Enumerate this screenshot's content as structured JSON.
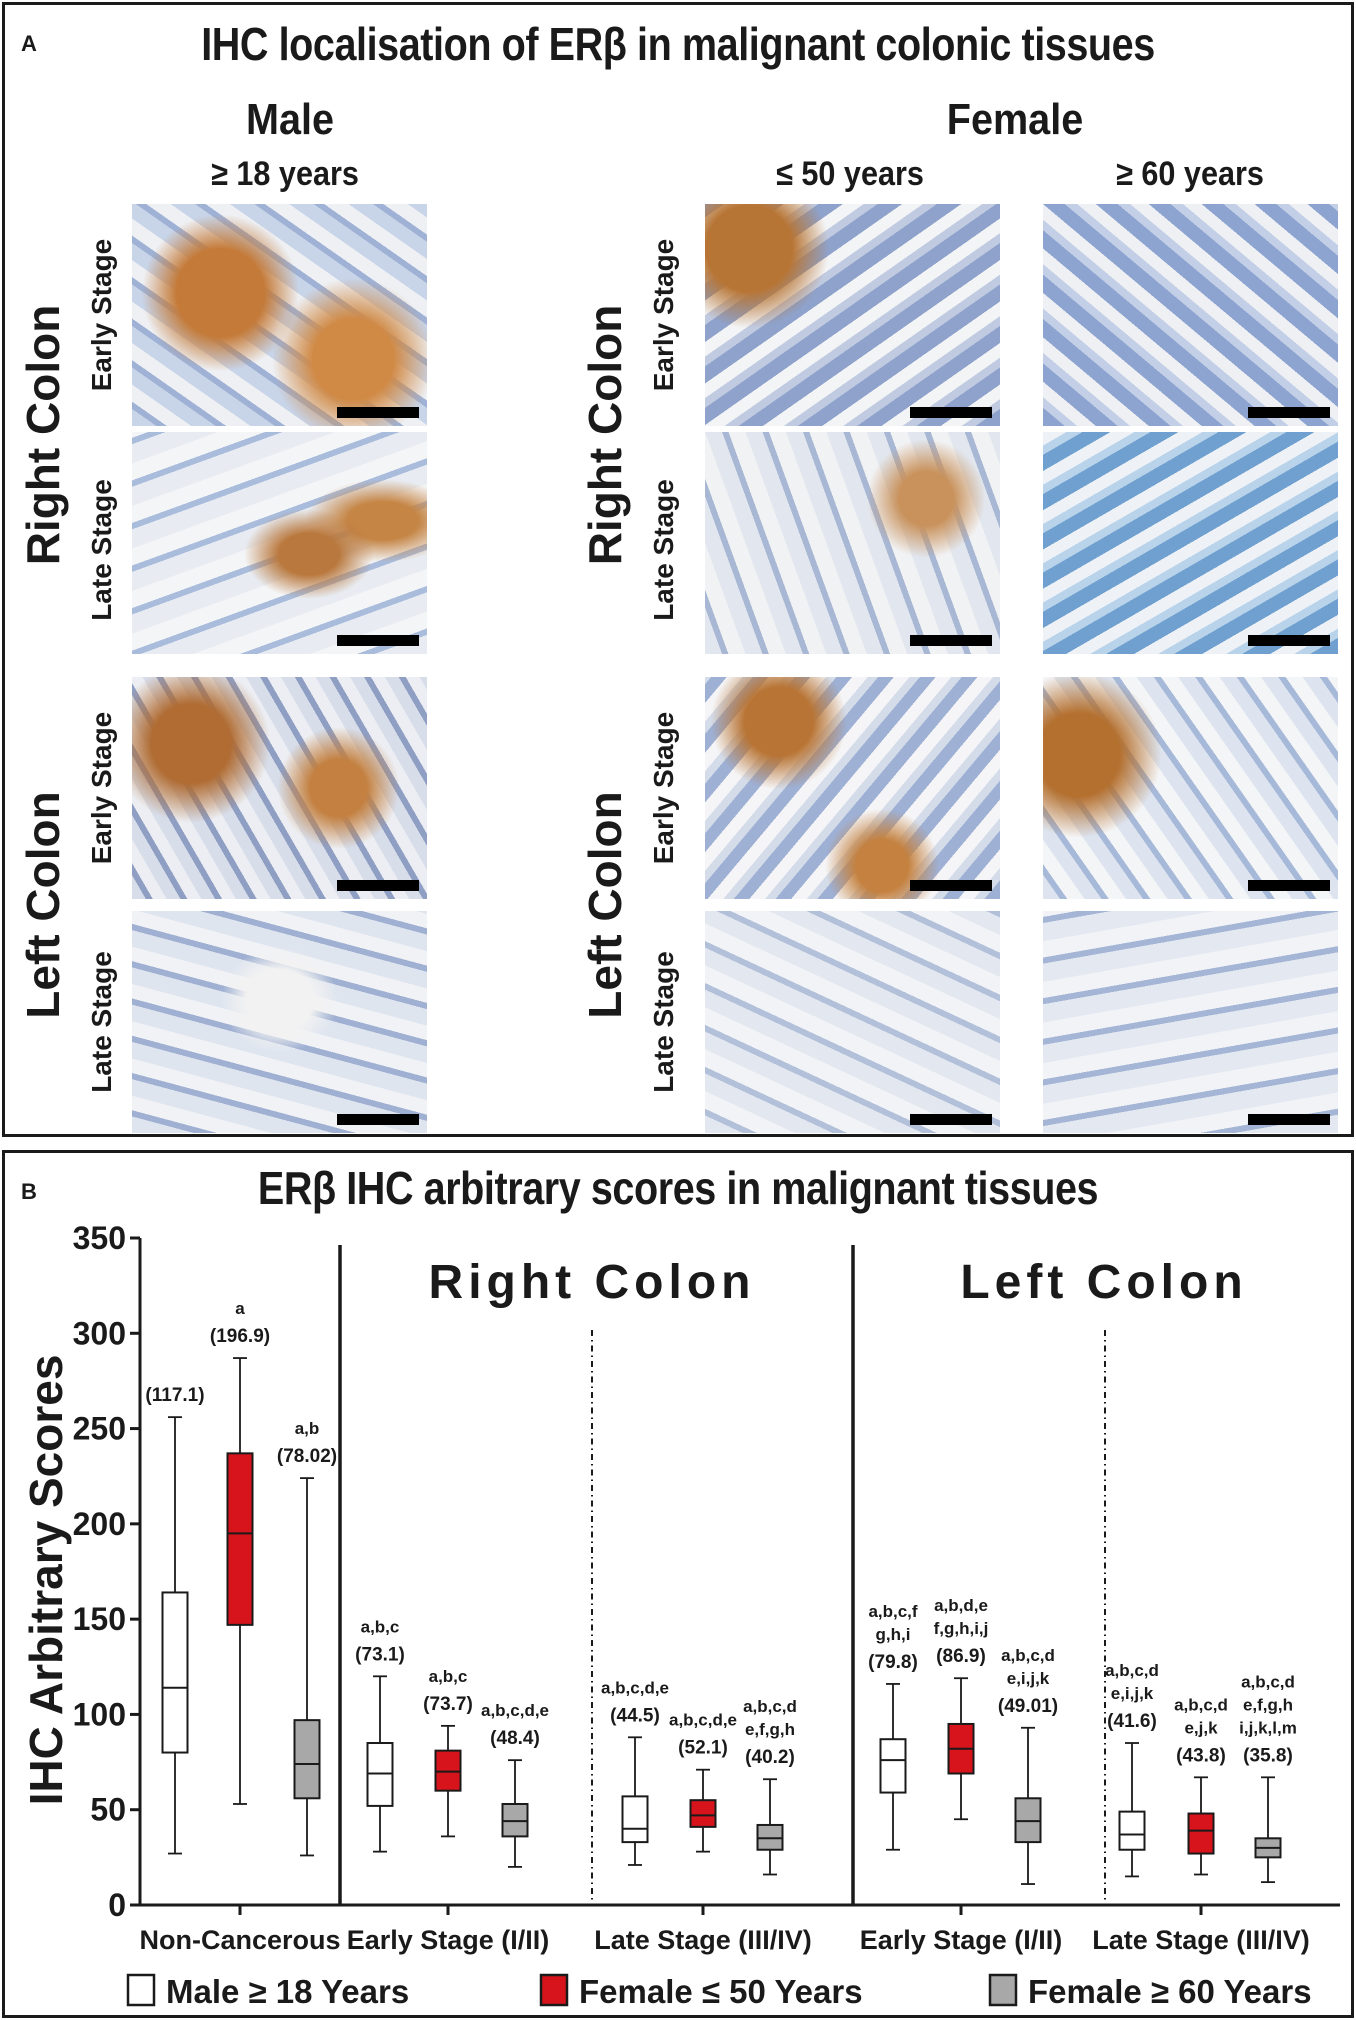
{
  "panel_a": {
    "letter": "A",
    "title": "IHC localisation of ERβ in malignant colonic tissues",
    "male_header": "Male",
    "male_age": "≥ 18 years",
    "female_header": "Female",
    "female_age_1": "≤ 50 years",
    "female_age_2": "≥ 60 years",
    "right_colon": "Right Colon",
    "left_colon": "Left Colon",
    "early_stage": "Early Stage",
    "late_stage": "Late Stage"
  },
  "panel_b": {
    "letter": "B",
    "title": "ERβ IHC arbitrary scores in malignant tissues",
    "region_right": "Right Colon",
    "region_left": "Left Colon",
    "legend": {
      "male": "Male  ≥ 18 Years",
      "female_young": "Female ≤ 50 Years",
      "female_old": "Female ≥ 60 Years"
    }
  },
  "chart_data": {
    "type": "box",
    "title": "ERβ IHC arbitrary scores in malignant tissues",
    "ylabel": "IHC Arbitrary Scores",
    "ylim": [
      0,
      350
    ],
    "yticks": [
      0,
      50,
      100,
      150,
      200,
      250,
      300,
      350
    ],
    "grid": false,
    "legend_position": "bottom",
    "colors": {
      "male": "#ffffff",
      "female_young": "#d7141c",
      "female_old": "#a8a8a8"
    },
    "categories": [
      "Non-Cancerous",
      "Early Stage (I/II)",
      "Late Stage (III/IV)",
      "Early Stage (I/II)",
      "Late Stage (III/IV)"
    ],
    "series": [
      {
        "name": "Male  ≥ 18 Years",
        "key": "male",
        "boxes": [
          {
            "min": 27,
            "q1": 80,
            "median": 114,
            "q3": 164,
            "max": 256,
            "mean": "(117.1)",
            "sig": []
          },
          {
            "min": 28,
            "q1": 52,
            "median": 69,
            "q3": 85,
            "max": 120,
            "mean": "(73.1)",
            "sig": [
              "a,b,c"
            ]
          },
          {
            "min": 21,
            "q1": 33,
            "median": 40,
            "q3": 57,
            "max": 88,
            "mean": "(44.5)",
            "sig": [
              "a,b,c,d,e"
            ]
          },
          {
            "min": 29,
            "q1": 59,
            "median": 76,
            "q3": 87,
            "max": 116,
            "mean": "(79.8)",
            "sig": [
              "a,b,c,f",
              "g,h,i"
            ]
          },
          {
            "min": 15,
            "q1": 29,
            "median": 37,
            "q3": 49,
            "max": 85,
            "mean": "(41.6)",
            "sig": [
              "a,b,c,d",
              "e,i,j,k"
            ]
          }
        ]
      },
      {
        "name": "Female ≤ 50 Years",
        "key": "female_young",
        "boxes": [
          {
            "min": 53,
            "q1": 147,
            "median": 195,
            "q3": 237,
            "max": 287,
            "mean": "(196.9)",
            "sig": [
              "a"
            ]
          },
          {
            "min": 36,
            "q1": 60,
            "median": 70,
            "q3": 81,
            "max": 94,
            "mean": "(73.7)",
            "sig": [
              "a,b,c"
            ]
          },
          {
            "min": 28,
            "q1": 41,
            "median": 47,
            "q3": 55,
            "max": 71,
            "mean": "(52.1)",
            "sig": [
              "a,b,c,d,e"
            ]
          },
          {
            "min": 45,
            "q1": 69,
            "median": 82,
            "q3": 95,
            "max": 119,
            "mean": "(86.9)",
            "sig": [
              "a,b,d,e",
              "f,g,h,i,j"
            ]
          },
          {
            "min": 16,
            "q1": 27,
            "median": 39,
            "q3": 48,
            "max": 67,
            "mean": "(43.8)",
            "sig": [
              "a,b,c,d",
              "e,j,k"
            ]
          }
        ]
      },
      {
        "name": "Female ≥ 60 Years",
        "key": "female_old",
        "boxes": [
          {
            "min": 26,
            "q1": 56,
            "median": 74,
            "q3": 97,
            "max": 224,
            "mean": "(78.02)",
            "sig": [
              "a,b"
            ]
          },
          {
            "min": 20,
            "q1": 36,
            "median": 44,
            "q3": 53,
            "max": 76,
            "mean": "(48.4)",
            "sig": [
              "a,b,c,d,e"
            ]
          },
          {
            "min": 16,
            "q1": 29,
            "median": 35,
            "q3": 42,
            "max": 66,
            "mean": "(40.2)",
            "sig": [
              "a,b,c,d",
              "e,f,g,h"
            ]
          },
          {
            "min": 11,
            "q1": 33,
            "median": 44,
            "q3": 56,
            "max": 93,
            "mean": "(49.01)",
            "sig": [
              "a,b,c,d",
              "e,i,j,k"
            ]
          },
          {
            "min": 12,
            "q1": 25,
            "median": 30,
            "q3": 35,
            "max": 67,
            "mean": "(35.8)",
            "sig": [
              "a,b,c,d",
              "e,f,g,h",
              "i,j,k,l,m"
            ]
          }
        ]
      }
    ]
  }
}
